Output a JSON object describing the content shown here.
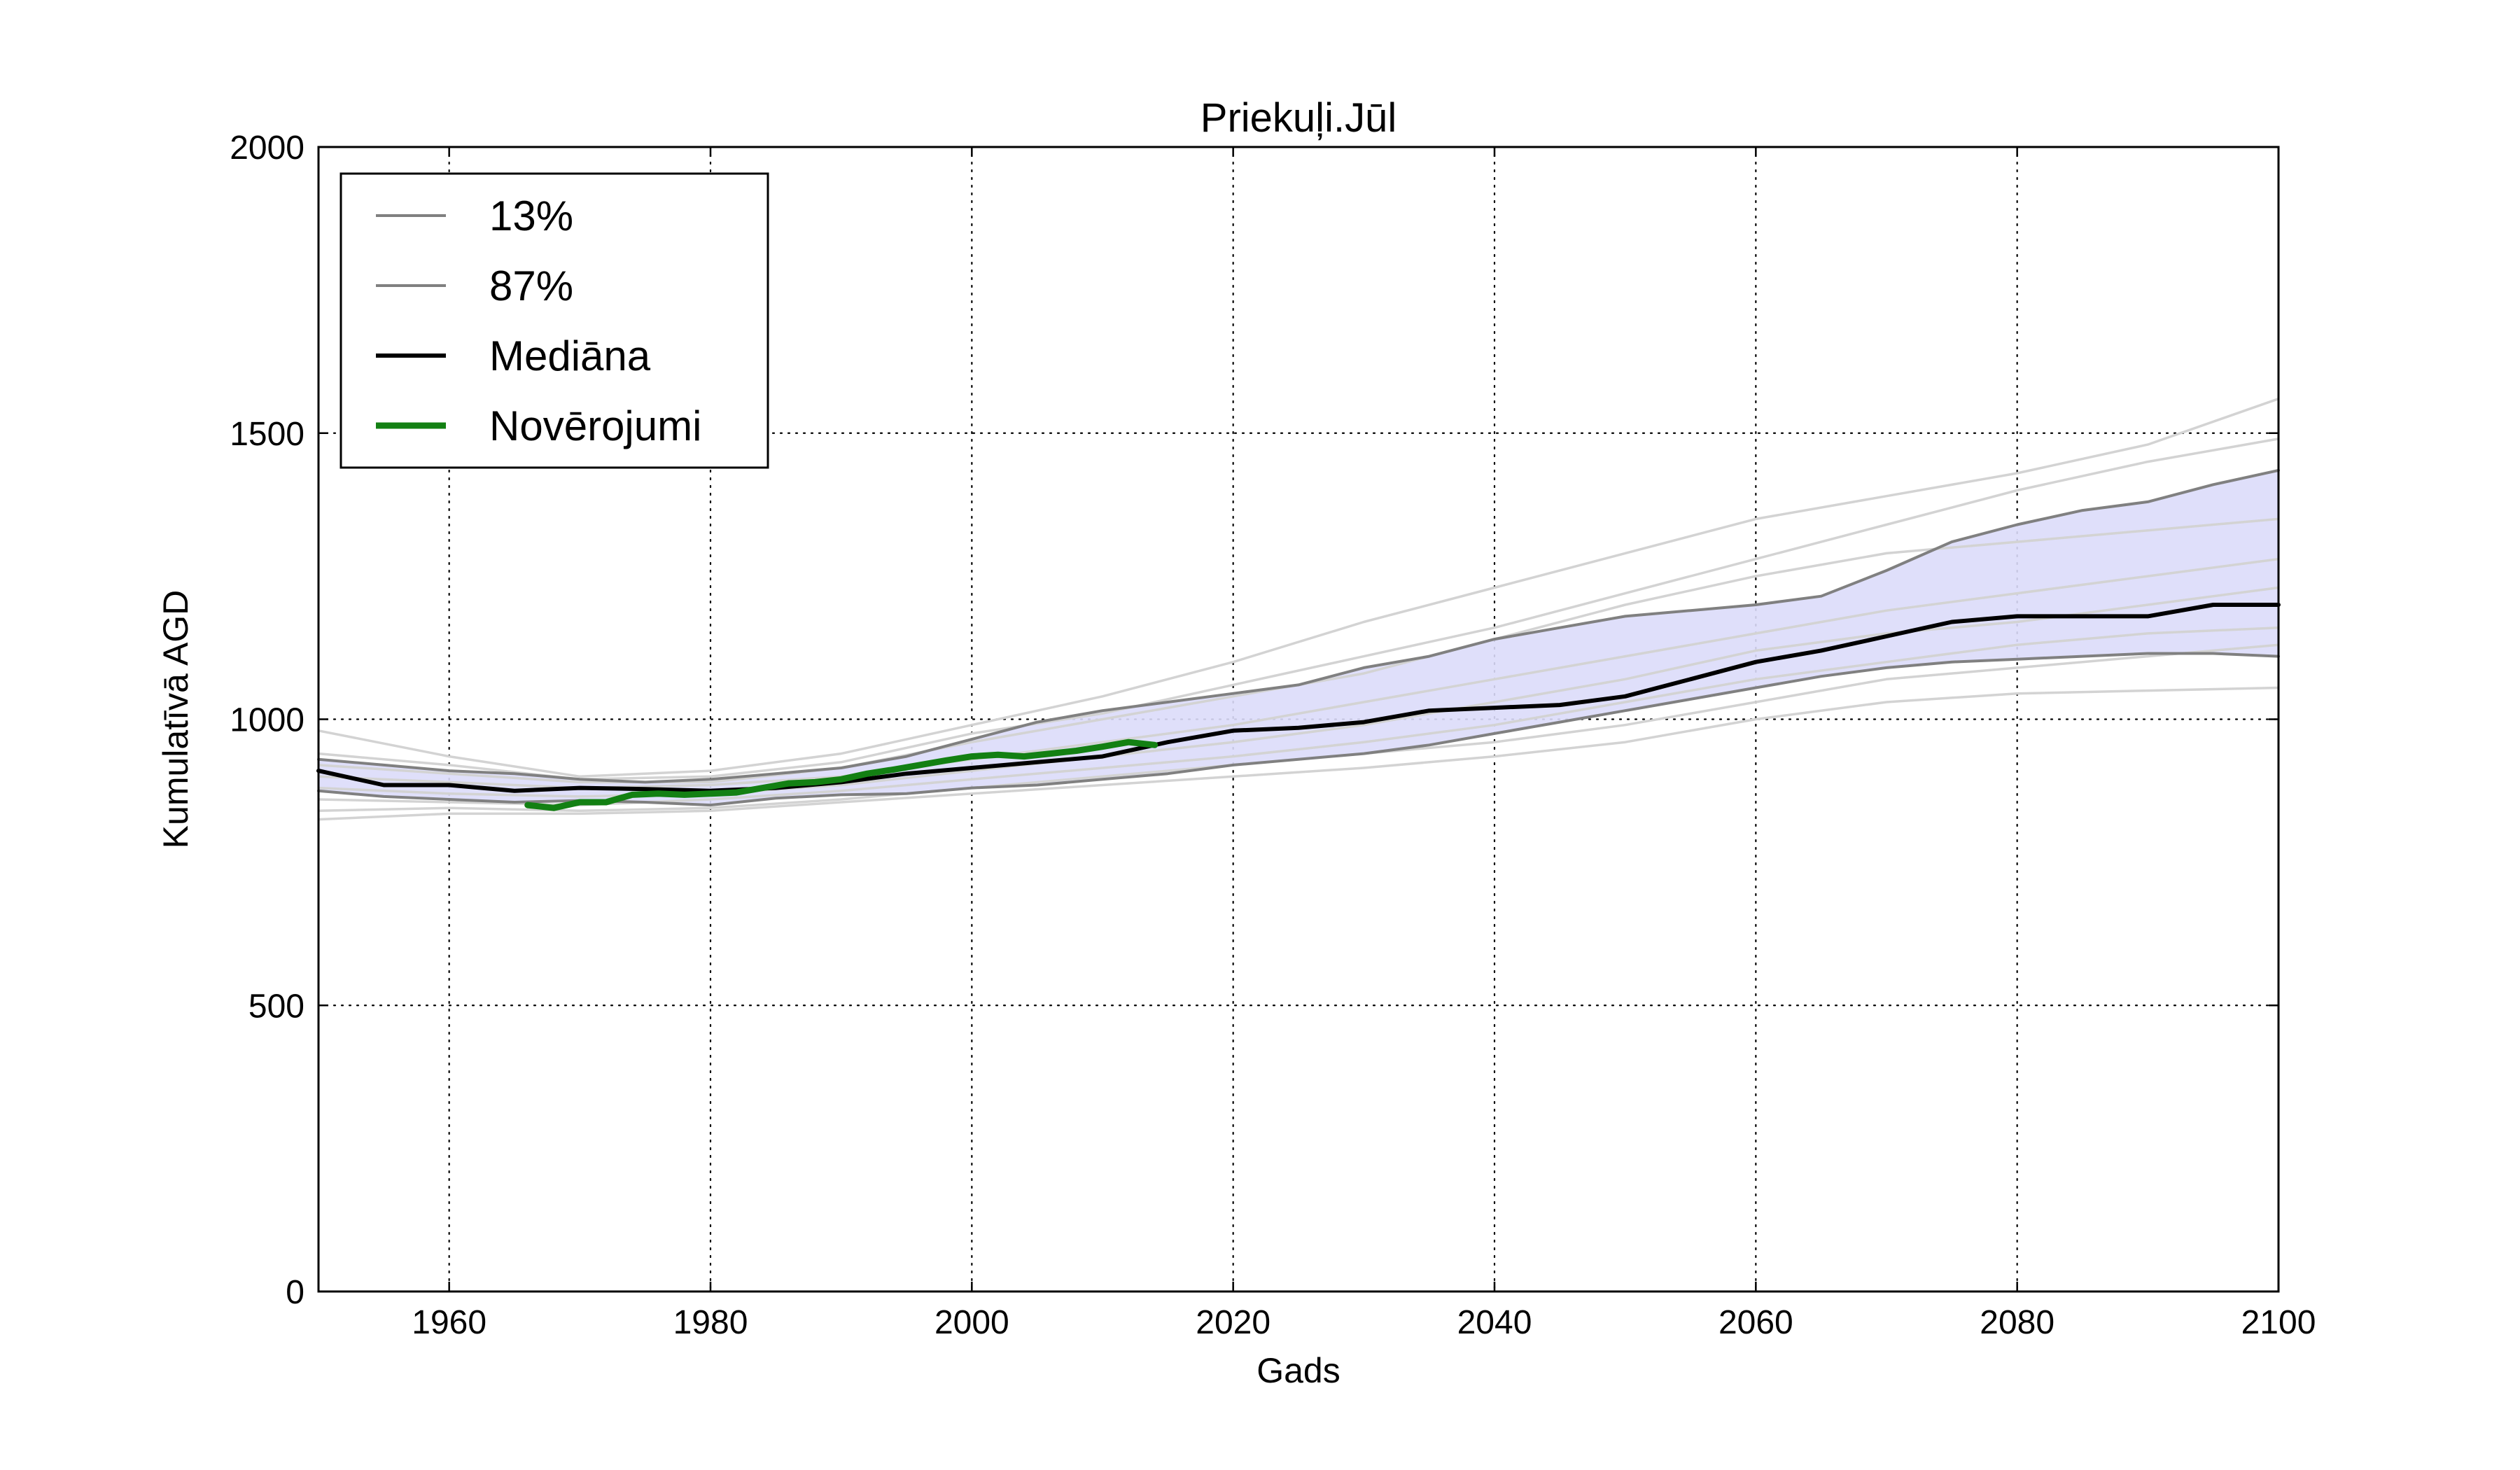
{
  "chart_data": {
    "type": "line",
    "title": "Priekuļi.Jūl",
    "xlabel": "Gads",
    "ylabel": "Kumulatīvā AGD",
    "xlim": [
      1950,
      2100
    ],
    "ylim": [
      0,
      2000
    ],
    "xticks": [
      1960,
      1980,
      2000,
      2020,
      2040,
      2060,
      2080,
      2100
    ],
    "yticks": [
      0,
      500,
      1000,
      1500,
      2000
    ],
    "grid": true,
    "legend_position": "top-left",
    "colors": {
      "band": "#dcdcfa",
      "percentile": "#808080",
      "median": "#000000",
      "observations": "#138013",
      "ensemble": "#d3d3d3"
    },
    "series": [
      {
        "name": "13%",
        "role": "lower_percentile",
        "x": [
          1950,
          1955,
          1960,
          1965,
          1970,
          1975,
          1980,
          1985,
          1990,
          1995,
          2000,
          2005,
          2010,
          2015,
          2020,
          2025,
          2030,
          2035,
          2040,
          2045,
          2050,
          2055,
          2060,
          2065,
          2070,
          2075,
          2080,
          2085,
          2090,
          2095,
          2100
        ],
        "values": [
          875,
          865,
          860,
          855,
          858,
          855,
          850,
          862,
          868,
          870,
          880,
          885,
          895,
          905,
          920,
          930,
          940,
          955,
          975,
          995,
          1015,
          1035,
          1055,
          1075,
          1090,
          1100,
          1105,
          1110,
          1115,
          1115,
          1110
        ]
      },
      {
        "name": "87%",
        "role": "upper_percentile",
        "x": [
          1950,
          1955,
          1960,
          1965,
          1970,
          1975,
          1980,
          1985,
          1990,
          1995,
          2000,
          2005,
          2010,
          2015,
          2020,
          2025,
          2030,
          2035,
          2040,
          2045,
          2050,
          2055,
          2060,
          2065,
          2070,
          2075,
          2080,
          2085,
          2090,
          2095,
          2100
        ],
        "values": [
          930,
          920,
          910,
          905,
          895,
          890,
          895,
          905,
          915,
          935,
          965,
          995,
          1015,
          1030,
          1045,
          1060,
          1090,
          1110,
          1140,
          1160,
          1180,
          1190,
          1200,
          1215,
          1260,
          1310,
          1340,
          1365,
          1380,
          1410,
          1435
        ]
      },
      {
        "name": "Mediāna",
        "role": "median",
        "x": [
          1950,
          1955,
          1960,
          1965,
          1970,
          1975,
          1980,
          1985,
          1990,
          1995,
          2000,
          2005,
          2010,
          2015,
          2020,
          2025,
          2030,
          2035,
          2040,
          2045,
          2050,
          2055,
          2060,
          2065,
          2070,
          2075,
          2080,
          2085,
          2090,
          2095,
          2100
        ],
        "values": [
          910,
          885,
          885,
          875,
          880,
          878,
          875,
          880,
          890,
          905,
          915,
          925,
          935,
          960,
          980,
          985,
          995,
          1015,
          1020,
          1025,
          1040,
          1070,
          1100,
          1120,
          1145,
          1170,
          1180,
          1180,
          1180,
          1200,
          1200
        ]
      },
      {
        "name": "Novērojumi",
        "role": "observations",
        "x": [
          1966,
          1968,
          1970,
          1972,
          1974,
          1976,
          1978,
          1980,
          1982,
          1984,
          1986,
          1988,
          1990,
          1992,
          1994,
          1996,
          1998,
          2000,
          2002,
          2004,
          2006,
          2008,
          2010,
          2012,
          2014
        ],
        "values": [
          850,
          845,
          855,
          855,
          868,
          870,
          868,
          870,
          872,
          880,
          888,
          890,
          895,
          905,
          912,
          920,
          928,
          935,
          938,
          935,
          940,
          945,
          952,
          960,
          955
        ]
      }
    ],
    "ensemble": [
      {
        "x": [
          1950,
          1960,
          1970,
          1980,
          1990,
          2000,
          2010,
          2020,
          2030,
          2040,
          2050,
          2060,
          2070,
          2080,
          2090,
          2100
        ],
        "values": [
          980,
          935,
          900,
          910,
          940,
          990,
          1040,
          1100,
          1170,
          1230,
          1290,
          1350,
          1390,
          1430,
          1480,
          1560
        ]
      },
      {
        "x": [
          1950,
          1960,
          1970,
          1980,
          1990,
          2000,
          2010,
          2020,
          2030,
          2040,
          2050,
          2060,
          2070,
          2080,
          2090,
          2100
        ],
        "values": [
          940,
          920,
          895,
          900,
          925,
          975,
          1010,
          1060,
          1110,
          1160,
          1220,
          1280,
          1340,
          1400,
          1450,
          1490
        ]
      },
      {
        "x": [
          1950,
          1960,
          1970,
          1980,
          1990,
          2000,
          2010,
          2020,
          2030,
          2040,
          2050,
          2060,
          2070,
          2080,
          2090,
          2100
        ],
        "values": [
          920,
          905,
          890,
          890,
          915,
          960,
          1000,
          1040,
          1080,
          1140,
          1200,
          1250,
          1290,
          1310,
          1330,
          1350
        ]
      },
      {
        "x": [
          1950,
          1960,
          1970,
          1980,
          1990,
          2000,
          2010,
          2020,
          2030,
          2040,
          2050,
          2060,
          2070,
          2080,
          2090,
          2100
        ],
        "values": [
          900,
          890,
          880,
          885,
          900,
          930,
          960,
          990,
          1030,
          1070,
          1110,
          1150,
          1190,
          1220,
          1250,
          1280
        ]
      },
      {
        "x": [
          1950,
          1960,
          1970,
          1980,
          1990,
          2000,
          2010,
          2020,
          2030,
          2040,
          2050,
          2060,
          2070,
          2080,
          2090,
          2100
        ],
        "values": [
          880,
          870,
          865,
          870,
          885,
          910,
          935,
          960,
          990,
          1030,
          1070,
          1120,
          1150,
          1170,
          1200,
          1230
        ]
      },
      {
        "x": [
          1950,
          1960,
          1970,
          1980,
          1990,
          2000,
          2010,
          2020,
          2030,
          2040,
          2050,
          2060,
          2070,
          2080,
          2090,
          2100
        ],
        "values": [
          860,
          855,
          850,
          860,
          875,
          895,
          915,
          935,
          960,
          990,
          1030,
          1070,
          1100,
          1130,
          1150,
          1160
        ]
      },
      {
        "x": [
          1950,
          1960,
          1970,
          1980,
          1990,
          2000,
          2010,
          2020,
          2030,
          2040,
          2050,
          2060,
          2070,
          2080,
          2090,
          2100
        ],
        "values": [
          840,
          845,
          840,
          845,
          860,
          880,
          900,
          920,
          940,
          960,
          990,
          1030,
          1070,
          1090,
          1110,
          1130
        ]
      },
      {
        "x": [
          1950,
          1960,
          1970,
          1980,
          1990,
          2000,
          2010,
          2020,
          2030,
          2040,
          2050,
          2060,
          2070,
          2080,
          2090,
          2100
        ],
        "values": [
          825,
          835,
          835,
          840,
          855,
          870,
          885,
          900,
          915,
          935,
          960,
          1000,
          1030,
          1045,
          1050,
          1055
        ]
      }
    ]
  }
}
